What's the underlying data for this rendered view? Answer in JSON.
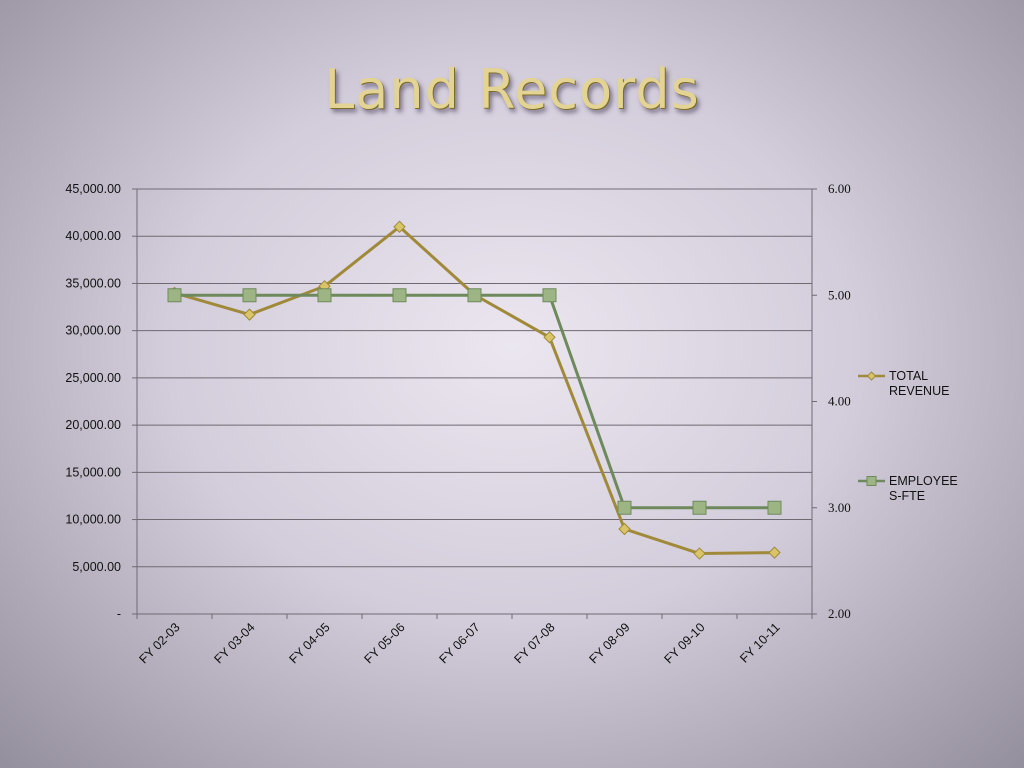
{
  "slide": {
    "title": "Land Records"
  },
  "chart_data": {
    "type": "line",
    "categories": [
      "FY 02-03",
      "FY 03-04",
      "FY 04-05",
      "FY 05-06",
      "FY 06-07",
      "FY 07-08",
      "FY 08-09",
      "FY 09-10",
      "FY 10-11"
    ],
    "series": [
      {
        "name": "TOTAL REVENUE",
        "legend_lines": [
          "TOTAL",
          "REVENUE"
        ],
        "axis": "left",
        "color": "#a08a3a",
        "marker": "diamond",
        "marker_color": "#d9c46a",
        "values": [
          34000,
          31700,
          34700,
          41000,
          33800,
          29300,
          9000,
          6400,
          6500
        ]
      },
      {
        "name": "EMPLOYEES-FTE",
        "legend_lines": [
          "EMPLOYEE",
          "S-FTE"
        ],
        "axis": "right",
        "color": "#6e8a5c",
        "marker": "square",
        "marker_color": "#9db585",
        "values": [
          5.0,
          5.0,
          5.0,
          5.0,
          5.0,
          5.0,
          3.0,
          3.0,
          3.0
        ]
      }
    ],
    "y_left": {
      "ylim": [
        0,
        45000
      ],
      "ticks": [
        0,
        5000,
        10000,
        15000,
        20000,
        25000,
        30000,
        35000,
        40000,
        45000
      ],
      "tick_labels": [
        "-",
        "5,000.00",
        "10,000.00",
        "15,000.00",
        "20,000.00",
        "25,000.00",
        "30,000.00",
        "35,000.00",
        "40,000.00",
        "45,000.00"
      ]
    },
    "y_right": {
      "ylim": [
        2.0,
        6.0
      ],
      "ticks": [
        2.0,
        3.0,
        4.0,
        5.0,
        6.0
      ],
      "tick_labels": [
        "2.00",
        "3.00",
        "4.00",
        "5.00",
        "6.00"
      ]
    },
    "grid": true,
    "legend_position": "right"
  }
}
